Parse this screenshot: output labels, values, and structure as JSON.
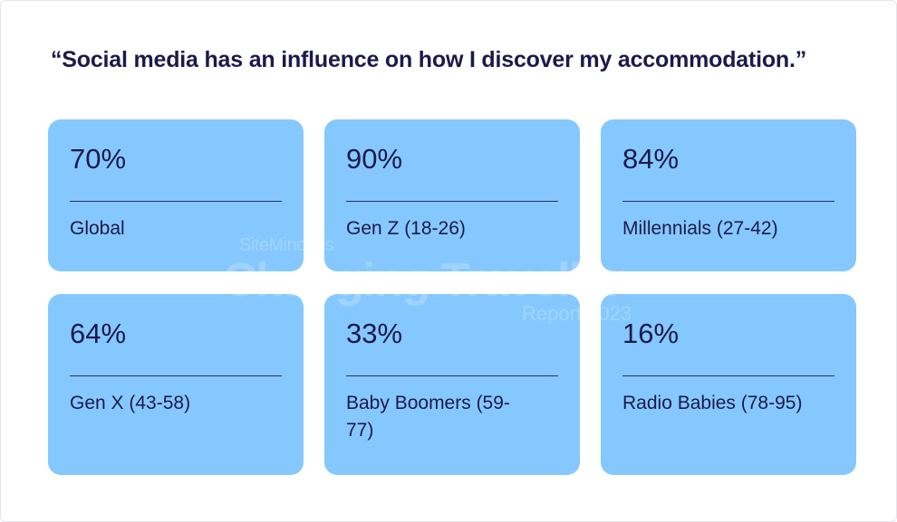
{
  "headline": "“Social media has an influence on how I discover my accommodation.”",
  "colors": {
    "card_background": "#85c8ff",
    "text": "#1c1a4a",
    "divider": "#2a2f55"
  },
  "watermark": {
    "brand": "SiteMinder’s",
    "title": "Changing Traveller",
    "subtitle": "Report 2023"
  },
  "chart_data": {
    "type": "table",
    "title": "“Social media has an influence on how I discover my accommodation.”",
    "unit": "%",
    "cards": [
      {
        "label": "Global",
        "value_text": "70%",
        "value": 70
      },
      {
        "label": "Gen Z (18-26)",
        "value_text": "90%",
        "value": 90
      },
      {
        "label": "Millennials (27-42)",
        "value_text": "84%",
        "value": 84
      },
      {
        "label": "Gen X (43-58)",
        "value_text": "64%",
        "value": 64
      },
      {
        "label": "Baby Boomers (59-77)",
        "value_text": "33%",
        "value": 33
      },
      {
        "label": "Radio Babies (78-95)",
        "value_text": "16%",
        "value": 16
      }
    ]
  }
}
